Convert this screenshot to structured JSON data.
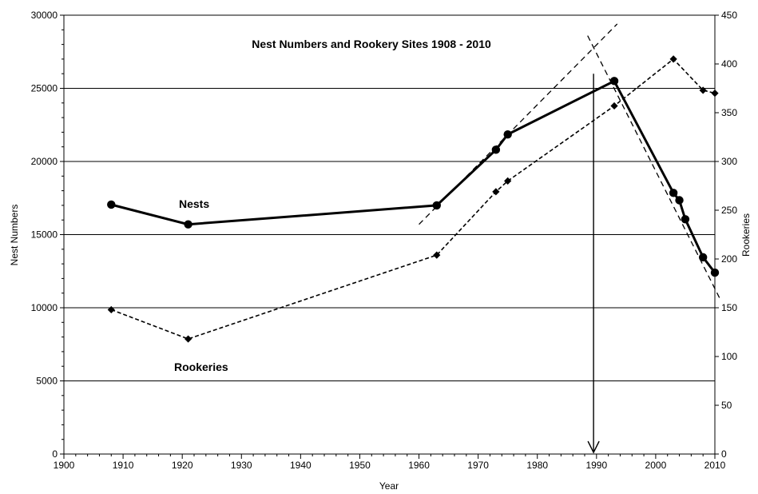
{
  "chart_data": {
    "type": "line",
    "title": "Nest Numbers and Rookery Sites 1908 - 2010",
    "xlabel": "Year",
    "ylabel": "Nest Numbers",
    "y2label": "Rookeries",
    "xlim": [
      1900,
      2010
    ],
    "ylim": [
      0,
      30000
    ],
    "y2lim": [
      0,
      450
    ],
    "x_ticks": [
      "1900",
      "1910",
      "1920",
      "1930",
      "1940",
      "1950",
      "1960",
      "1970",
      "1980",
      "1990",
      "2000",
      "2010"
    ],
    "y_ticks": [
      "0",
      "5000",
      "10000",
      "15000",
      "20000",
      "25000",
      "30000"
    ],
    "y2_ticks": [
      "0",
      "50",
      "100",
      "150",
      "200",
      "250",
      "300",
      "350",
      "400",
      "450"
    ],
    "grid": "horizontal",
    "series": [
      {
        "name": "Nests",
        "axis": "left",
        "style": "solid",
        "marker": "circle",
        "x": [
          1908,
          1921,
          1963,
          1973,
          1975,
          1993,
          2003,
          2004,
          2005,
          2008,
          2010
        ],
        "y": [
          17050,
          15700,
          17000,
          20800,
          21850,
          25500,
          17850,
          17350,
          16050,
          13450,
          12400
        ]
      },
      {
        "name": "Rookeries",
        "axis": "right",
        "style": "dashed",
        "marker": "diamond",
        "x": [
          1908,
          1921,
          1963,
          1973,
          1975,
          1993,
          2003,
          2008,
          2010
        ],
        "y": [
          148,
          118,
          204,
          269,
          280,
          357,
          405,
          373,
          370
        ]
      }
    ],
    "trend_lines": [
      {
        "style": "dashed",
        "x": [
          1960,
          1993.5
        ],
        "y": [
          15700,
          29400
        ]
      },
      {
        "style": "dashed",
        "x": [
          1988.5,
          2011
        ],
        "y": [
          28600,
          10500
        ]
      }
    ],
    "arrow": {
      "x": 1989.5,
      "y_from": 26000,
      "y_to": 0
    },
    "annotations": [
      {
        "text": "Nests",
        "x": 1922,
        "y": 17000
      },
      {
        "text": "Rookeries",
        "x": 1920,
        "y": 5900
      }
    ]
  }
}
